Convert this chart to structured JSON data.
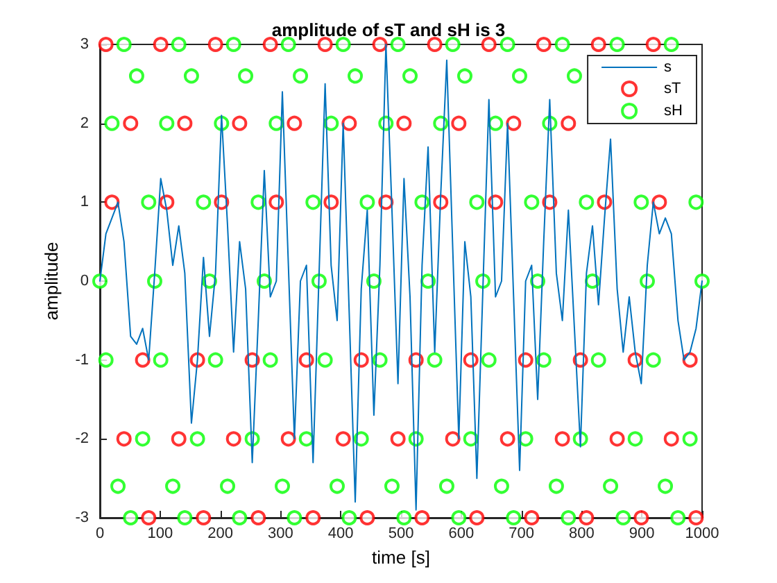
{
  "chart_data": {
    "type": "line",
    "title": "amplitude of sT and sH is 3",
    "xlabel": "time [s]",
    "ylabel": "amplitude",
    "x": [
      0,
      10,
      20,
      30,
      40,
      51,
      61,
      71,
      81,
      91,
      101,
      111,
      121,
      131,
      141,
      152,
      162,
      172,
      182,
      192,
      202,
      212,
      222,
      232,
      242,
      253,
      263,
      273,
      283,
      293,
      303,
      313,
      323,
      333,
      343,
      354,
      364,
      374,
      384,
      394,
      404,
      414,
      424,
      434,
      444,
      455,
      465,
      475,
      485,
      495,
      505,
      515,
      525,
      535,
      545,
      556,
      566,
      576,
      586,
      596,
      606,
      616,
      626,
      636,
      646,
      657,
      667,
      677,
      687,
      697,
      707,
      717,
      727,
      737,
      747,
      758,
      768,
      778,
      788,
      798,
      808,
      818,
      828,
      838,
      848,
      859,
      869,
      879,
      889,
      899,
      909,
      919,
      929,
      939,
      949,
      960,
      970,
      980,
      990,
      1000
    ],
    "xlim": [
      0,
      1000
    ],
    "xticks": [
      0,
      100,
      200,
      300,
      400,
      500,
      600,
      700,
      800,
      900,
      1000
    ],
    "ylim": [
      -3,
      3
    ],
    "yticks": [
      -3,
      -2,
      -1,
      0,
      1,
      2,
      3
    ],
    "grid": false,
    "legend": "top right",
    "series": [
      {
        "name": "s",
        "color": "#0072bd",
        "marker": "none",
        "line_style": "solid",
        "values": [
          0,
          0.6,
          0.8,
          1.0,
          0.5,
          -0.7,
          -0.8,
          -0.6,
          -1.0,
          0.1,
          1.3,
          0.9,
          0.2,
          0.7,
          0.1,
          -1.8,
          -1.0,
          0.3,
          -0.7,
          0.1,
          2.1,
          0.7,
          -0.9,
          0.5,
          -0.1,
          -2.3,
          -0.5,
          1.4,
          -0.2,
          0,
          2.4,
          0.2,
          -2.0,
          0,
          0.2,
          -2.3,
          0.1,
          2.5,
          0.2,
          -0.5,
          2.0,
          -0.4,
          -2.8,
          -0.1,
          0.9,
          -1.7,
          0.2,
          3.0,
          0.9,
          -1.3,
          1.3,
          -0.2,
          -2.9,
          0.2,
          1.7,
          -0.9,
          1.1,
          2.8,
          0.4,
          -2.0,
          0.5,
          -0.2,
          -2.5,
          -0.1,
          2.3,
          -0.2,
          0,
          2.0,
          -0.2,
          -2.4,
          0,
          0.2,
          -1.5,
          0.5,
          2.3,
          0.1,
          -0.5,
          0.9,
          -0.6,
          -2.1,
          0.1,
          0.7,
          -0.3,
          0.8,
          1.8,
          -0.1,
          -0.9,
          -0.2,
          -0.9,
          -1.3,
          0.2,
          1.0,
          0.6,
          0.8,
          0.6,
          -0.5,
          -1.0,
          -0.9,
          -0.6,
          0
        ]
      },
      {
        "name": "sT",
        "type": "scatter",
        "color": "#ff0000",
        "marker": "circle",
        "values": [
          null,
          3,
          1,
          null,
          -2,
          2,
          null,
          -1,
          -3,
          null,
          3,
          1,
          null,
          -2,
          2,
          null,
          -1,
          -3,
          null,
          3,
          1,
          null,
          -2,
          2,
          null,
          -1,
          -3,
          null,
          3,
          1,
          null,
          -2,
          2,
          null,
          -1,
          -3,
          null,
          3,
          1,
          null,
          -2,
          2,
          null,
          -1,
          -3,
          null,
          3,
          1,
          null,
          -2,
          2,
          null,
          -1,
          -3,
          null,
          3,
          1,
          null,
          -2,
          2,
          null,
          -1,
          -3,
          null,
          3,
          1,
          null,
          -2,
          2,
          null,
          -1,
          -3,
          null,
          3,
          1,
          null,
          -2,
          2,
          null,
          -1,
          -3,
          null,
          3,
          1,
          null,
          -2,
          null,
          null,
          -1,
          -3,
          null,
          3,
          1,
          null,
          -2,
          null,
          null,
          -1,
          -3,
          null
        ]
      },
      {
        "name": "sH",
        "type": "scatter",
        "color": "#00ff00",
        "marker": "circle",
        "values": [
          0,
          -1,
          2,
          -2.6,
          3,
          -3,
          2.6,
          -2,
          1,
          0,
          -1,
          2,
          -2.6,
          3,
          -3,
          2.6,
          -2,
          1,
          0,
          -1,
          2,
          -2.6,
          3,
          -3,
          2.6,
          -2,
          1,
          0,
          -1,
          2,
          -2.6,
          3,
          -3,
          2.6,
          -2,
          1,
          0,
          -1,
          2,
          -2.6,
          3,
          -3,
          2.6,
          -2,
          1,
          0,
          -1,
          2,
          -2.6,
          3,
          -3,
          2.6,
          -2,
          1,
          0,
          -1,
          2,
          -2.6,
          3,
          -3,
          2.6,
          -2,
          1,
          0,
          -1,
          2,
          -2.6,
          3,
          -3,
          2.6,
          -2,
          1,
          0,
          -1,
          2,
          -2.6,
          3,
          -3,
          2.6,
          -2,
          1,
          0,
          -1,
          null,
          -2.6,
          3,
          -3,
          null,
          -2,
          1,
          0,
          -1,
          null,
          -2.6,
          3,
          -3,
          null,
          -2,
          1,
          0
        ]
      }
    ]
  }
}
